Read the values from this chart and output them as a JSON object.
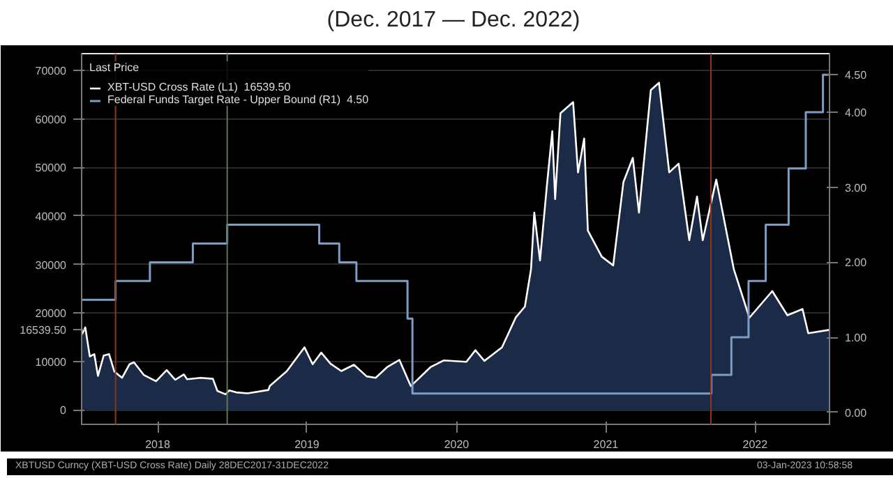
{
  "chart_data": {
    "type": "area",
    "title": "(Dec. 2017 — Dec. 2022)",
    "legend_title": "Last Price",
    "legend": "top left",
    "grid": "y",
    "xlim": [
      "2017-12-28",
      "2022-12-31"
    ],
    "xticks": [
      {
        "value": "2018-07-02",
        "label": "2018"
      },
      {
        "value": "2019-07-02",
        "label": "2019"
      },
      {
        "value": "2020-07-02",
        "label": "2020"
      },
      {
        "value": "2021-07-02",
        "label": "2021"
      },
      {
        "value": "2022-07-02",
        "label": "2022"
      }
    ],
    "ylim": [
      -3000,
      73500
    ],
    "yticks": [
      0,
      10000,
      {
        "value": 16539.5,
        "label": "16539.50"
      },
      20000,
      30000,
      40000,
      50000,
      60000,
      70000
    ],
    "y2lim": [
      -0.16,
      4.78
    ],
    "y2ticks": [
      {
        "value": 0,
        "label": "0.00"
      },
      {
        "value": 1,
        "label": "1.00"
      },
      {
        "value": 2,
        "label": "2.00"
      },
      {
        "value": 3,
        "label": "3.00"
      },
      {
        "value": 4,
        "label": "4.00"
      },
      {
        "value": 4.5,
        "label": "4.50"
      }
    ],
    "ref_lines": [
      {
        "axis": "x",
        "value": "2018-03-21",
        "color": "#8a3a1a"
      },
      {
        "axis": "x",
        "value": "2018-12-19",
        "color": "#5a7a5a"
      },
      {
        "axis": "x",
        "value": "2022-03-16",
        "color": "#8a3a1a"
      }
    ],
    "annotations": [
      "XBTUSD Curncy (XBT-USD Cross Rate) Daily 28DEC2017-31DEC2022",
      "03-Jan-2023 10:58:58"
    ],
    "series": [
      {
        "name": "XBT-USD Cross Rate (L1)  16539.50",
        "color": "#ffffff",
        "x": [
          "2017-12-28",
          "2018-01-06",
          "2018-01-17",
          "2018-01-28",
          "2018-02-06",
          "2018-02-20",
          "2018-03-05",
          "2018-03-18",
          "2018-04-06",
          "2018-04-24",
          "2018-05-05",
          "2018-05-29",
          "2018-06-28",
          "2018-07-24",
          "2018-08-14",
          "2018-09-04",
          "2018-09-12",
          "2018-10-15",
          "2018-11-14",
          "2018-11-25",
          "2018-12-15",
          "2018-12-24",
          "2019-01-10",
          "2019-02-07",
          "2019-03-30",
          "2019-04-02",
          "2019-05-14",
          "2019-06-26",
          "2019-07-16",
          "2019-08-06",
          "2019-08-29",
          "2019-09-24",
          "2019-10-25",
          "2019-11-25",
          "2019-12-17",
          "2020-01-14",
          "2020-02-13",
          "2020-03-12",
          "2020-04-29",
          "2020-06-01",
          "2020-07-26",
          "2020-08-17",
          "2020-09-08",
          "2020-10-21",
          "2020-11-24",
          "2020-12-16",
          "2020-12-31",
          "2021-01-08",
          "2021-01-22",
          "2021-02-08",
          "2021-02-21",
          "2021-02-28",
          "2021-03-13",
          "2021-04-13",
          "2021-04-25",
          "2021-05-10",
          "2021-05-19",
          "2021-06-22",
          "2021-07-20",
          "2021-08-14",
          "2021-09-06",
          "2021-09-21",
          "2021-10-20",
          "2021-11-09",
          "2021-12-04",
          "2021-12-27",
          "2022-01-22",
          "2022-02-10",
          "2022-02-24",
          "2022-03-29",
          "2022-05-11",
          "2022-06-18",
          "2022-08-13",
          "2022-09-19",
          "2022-10-26",
          "2022-11-09",
          "2022-12-31"
        ],
        "values": [
          15500,
          17000,
          11000,
          11500,
          7000,
          11200,
          11500,
          7900,
          6600,
          9400,
          9800,
          7200,
          5900,
          8200,
          6200,
          7300,
          6300,
          6600,
          6400,
          3900,
          3200,
          4000,
          3600,
          3400,
          4100,
          4900,
          8000,
          12900,
          9400,
          11800,
          9500,
          8000,
          9300,
          6900,
          6600,
          8800,
          10300,
          4900,
          8800,
          10200,
          9900,
          12300,
          10100,
          12900,
          19100,
          21300,
          29000,
          40700,
          30800,
          46400,
          57500,
          43500,
          61200,
          63500,
          49000,
          56000,
          37000,
          31600,
          29800,
          47000,
          52000,
          40700,
          66000,
          67500,
          49000,
          50800,
          35000,
          44000,
          35000,
          47500,
          29000,
          19000,
          24500,
          19500,
          20800,
          15800,
          16500
        ]
      },
      {
        "name": "Federal Funds Target Rate - Upper Bound (R1)  4.50",
        "type": "step",
        "axis": "y2",
        "color": "#7f9cc4",
        "x": [
          "2017-12-28",
          "2018-03-21",
          "2018-06-13",
          "2018-09-26",
          "2018-12-19",
          "2019-08-01",
          "2019-09-19",
          "2019-10-31",
          "2020-03-04",
          "2020-03-16",
          "2022-03-17",
          "2022-05-05",
          "2022-06-16",
          "2022-07-28",
          "2022-09-22",
          "2022-11-03",
          "2022-12-15",
          "2022-12-31"
        ],
        "values": [
          1.5,
          1.75,
          2.0,
          2.25,
          2.5,
          2.25,
          2.0,
          1.75,
          1.25,
          0.25,
          0.5,
          1.0,
          1.75,
          2.5,
          3.25,
          4.0,
          4.5,
          4.5
        ]
      }
    ]
  }
}
